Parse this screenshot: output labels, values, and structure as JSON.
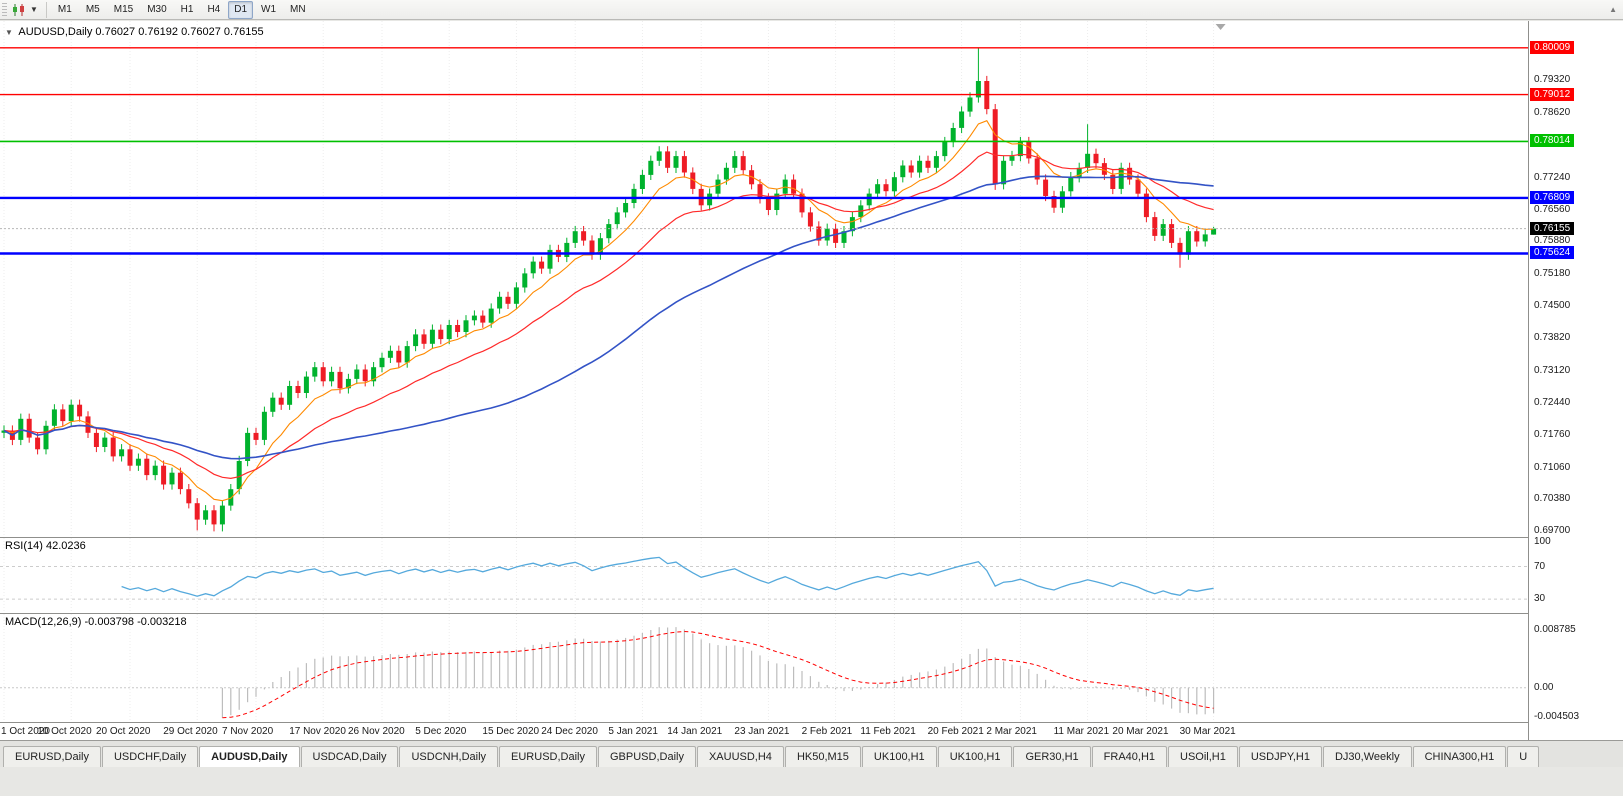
{
  "toolbar": {
    "timeframes": [
      "M1",
      "M5",
      "M15",
      "M30",
      "H1",
      "H4",
      "D1",
      "W1",
      "MN"
    ],
    "active_timeframe": "D1"
  },
  "chart_header": {
    "symbol": "AUDUSD,Daily",
    "open": "0.76027",
    "high": "0.76192",
    "low": "0.76027",
    "close": "0.76155"
  },
  "price_axis": {
    "ticks": [
      {
        "label": "0.79320",
        "value": 0.7932
      },
      {
        "label": "0.78620",
        "value": 0.7862
      },
      {
        "label": "0.77240",
        "value": 0.7724
      },
      {
        "label": "0.76560",
        "value": 0.7656
      },
      {
        "label": "0.75880",
        "value": 0.7588
      },
      {
        "label": "0.75180",
        "value": 0.7518
      },
      {
        "label": "0.74500",
        "value": 0.745
      },
      {
        "label": "0.73820",
        "value": 0.7382
      },
      {
        "label": "0.73120",
        "value": 0.7312
      },
      {
        "label": "0.72440",
        "value": 0.7244
      },
      {
        "label": "0.71760",
        "value": 0.7176
      },
      {
        "label": "0.71060",
        "value": 0.7106
      },
      {
        "label": "0.70380",
        "value": 0.7038
      },
      {
        "label": "0.69700",
        "value": 0.697
      }
    ]
  },
  "hlines": [
    {
      "label": "0.80009",
      "value": 0.80009,
      "color": "#ff0000",
      "width": 1.4
    },
    {
      "label": "0.79012",
      "value": 0.79012,
      "color": "#ff0000",
      "width": 1.4
    },
    {
      "label": "0.78014",
      "value": 0.78014,
      "color": "#00c000",
      "width": 1.6
    },
    {
      "label": "0.76809",
      "value": 0.76809,
      "color": "#0000ff",
      "width": 2.4
    },
    {
      "label": "0.75624",
      "value": 0.75624,
      "color": "#0000ff",
      "width": 2.4
    }
  ],
  "current_price": {
    "label": "0.76155",
    "value": 0.76155,
    "color": "#000000"
  },
  "indicators": {
    "rsi": {
      "name": "RSI(14)",
      "value": "42.0236",
      "period": 14,
      "color": "#55a9dc",
      "axis": [
        {
          "label": "100",
          "value": 100
        },
        {
          "label": "70",
          "value": 70
        },
        {
          "label": "30",
          "value": 30
        }
      ],
      "level_lines": [
        70,
        30
      ]
    },
    "macd": {
      "name": "MACD(12,26,9)",
      "main_value": "-0.003798",
      "signal_value": "-0.003218",
      "fast": 12,
      "slow": 26,
      "signal": 9,
      "hist_color": "#bdbdbd",
      "signal_color": "#ff0000",
      "axis": [
        {
          "label": "0.008785",
          "value": 0.008785
        },
        {
          "label": "0.00",
          "value": 0
        },
        {
          "label": "-0.004503",
          "value": -0.004503
        }
      ]
    }
  },
  "ma_overlays": [
    {
      "name": "fast-ma",
      "type": "ema",
      "period": 8,
      "color": "#ff8a00",
      "width": 1.1
    },
    {
      "name": "mid-ma",
      "type": "ema",
      "period": 20,
      "color": "#ff2a2a",
      "width": 1.2
    },
    {
      "name": "slow-ma",
      "type": "sma",
      "period": 50,
      "color": "#3353c6",
      "width": 1.6
    }
  ],
  "chart_data": {
    "type": "candlestick",
    "symbol": "AUDUSD",
    "timeframe": "Daily",
    "up_color": "#00b22d",
    "down_color": "#ee1c25",
    "y_range": [
      0.6958,
      0.8058
    ],
    "x_labels": [
      "1 Oct 2020",
      "10 Oct 2020",
      "20 Oct 2020",
      "29 Oct 2020",
      "7 Nov 2020",
      "17 Nov 2020",
      "26 Nov 2020",
      "5 Dec 2020",
      "15 Dec 2020",
      "24 Dec 2020",
      "5 Jan 2021",
      "14 Jan 2021",
      "23 Jan 2021",
      "2 Feb 2021",
      "11 Feb 2021",
      "20 Feb 2021",
      "2 Mar 2021",
      "11 Mar 2021",
      "20 Mar 2021",
      "30 Mar 2021"
    ],
    "candles": [
      [
        0.718,
        0.7196,
        0.7169,
        0.7185
      ],
      [
        0.7185,
        0.7196,
        0.7154,
        0.7165
      ],
      [
        0.7165,
        0.7221,
        0.7154,
        0.721
      ],
      [
        0.721,
        0.7221,
        0.7159,
        0.717
      ],
      [
        0.717,
        0.7181,
        0.7134,
        0.7145
      ],
      [
        0.7145,
        0.7206,
        0.7134,
        0.7195
      ],
      [
        0.7195,
        0.7241,
        0.7184,
        0.723
      ],
      [
        0.723,
        0.7241,
        0.7194,
        0.7205
      ],
      [
        0.7205,
        0.7251,
        0.7194,
        0.724
      ],
      [
        0.724,
        0.7251,
        0.7204,
        0.7215
      ],
      [
        0.7215,
        0.7226,
        0.7169,
        0.718
      ],
      [
        0.718,
        0.7191,
        0.7139,
        0.715
      ],
      [
        0.715,
        0.7181,
        0.7139,
        0.717
      ],
      [
        0.717,
        0.7181,
        0.7119,
        0.713
      ],
      [
        0.713,
        0.7156,
        0.7119,
        0.7145
      ],
      [
        0.7145,
        0.7156,
        0.7099,
        0.711
      ],
      [
        0.711,
        0.7136,
        0.7099,
        0.7125
      ],
      [
        0.7125,
        0.7136,
        0.7079,
        0.709
      ],
      [
        0.709,
        0.7121,
        0.7079,
        0.711
      ],
      [
        0.711,
        0.7121,
        0.7059,
        0.707
      ],
      [
        0.707,
        0.7106,
        0.7059,
        0.7095
      ],
      [
        0.7095,
        0.7106,
        0.7049,
        0.706
      ],
      [
        0.706,
        0.7071,
        0.7019,
        0.703
      ],
      [
        0.703,
        0.7041,
        0.6972,
        0.6995
      ],
      [
        0.6995,
        0.7026,
        0.6984,
        0.7015
      ],
      [
        0.7015,
        0.7026,
        0.697,
        0.6985
      ],
      [
        0.6985,
        0.7036,
        0.697,
        0.7025
      ],
      [
        0.7025,
        0.7071,
        0.7014,
        0.706
      ],
      [
        0.706,
        0.7131,
        0.7049,
        0.712
      ],
      [
        0.712,
        0.7191,
        0.7109,
        0.718
      ],
      [
        0.718,
        0.7191,
        0.7154,
        0.7165
      ],
      [
        0.7165,
        0.7236,
        0.7154,
        0.7225
      ],
      [
        0.7225,
        0.7266,
        0.7214,
        0.7255
      ],
      [
        0.7255,
        0.7266,
        0.7229,
        0.724
      ],
      [
        0.724,
        0.7291,
        0.7229,
        0.728
      ],
      [
        0.728,
        0.7291,
        0.7254,
        0.7265
      ],
      [
        0.7265,
        0.7311,
        0.7254,
        0.73
      ],
      [
        0.73,
        0.7331,
        0.7289,
        0.732
      ],
      [
        0.732,
        0.7331,
        0.7279,
        0.729
      ],
      [
        0.729,
        0.7321,
        0.7279,
        0.731
      ],
      [
        0.731,
        0.7321,
        0.7264,
        0.7275
      ],
      [
        0.7275,
        0.7306,
        0.7264,
        0.7295
      ],
      [
        0.7295,
        0.7326,
        0.7284,
        0.7315
      ],
      [
        0.7315,
        0.7326,
        0.7279,
        0.729
      ],
      [
        0.729,
        0.7331,
        0.7279,
        0.732
      ],
      [
        0.732,
        0.7351,
        0.7309,
        0.734
      ],
      [
        0.734,
        0.7366,
        0.7329,
        0.7355
      ],
      [
        0.7355,
        0.7366,
        0.7319,
        0.733
      ],
      [
        0.733,
        0.7376,
        0.7319,
        0.7365
      ],
      [
        0.7365,
        0.7401,
        0.7354,
        0.739
      ],
      [
        0.739,
        0.7401,
        0.7359,
        0.737
      ],
      [
        0.737,
        0.7411,
        0.7359,
        0.74
      ],
      [
        0.74,
        0.7411,
        0.7369,
        0.738
      ],
      [
        0.738,
        0.7421,
        0.7369,
        0.741
      ],
      [
        0.741,
        0.7421,
        0.7384,
        0.7395
      ],
      [
        0.7395,
        0.7431,
        0.7384,
        0.742
      ],
      [
        0.742,
        0.7441,
        0.7409,
        0.743
      ],
      [
        0.743,
        0.7441,
        0.7404,
        0.7415
      ],
      [
        0.7415,
        0.7456,
        0.7404,
        0.7445
      ],
      [
        0.7445,
        0.7481,
        0.7434,
        0.747
      ],
      [
        0.747,
        0.7481,
        0.7444,
        0.7455
      ],
      [
        0.7455,
        0.7501,
        0.7444,
        0.749
      ],
      [
        0.749,
        0.7531,
        0.7479,
        0.752
      ],
      [
        0.752,
        0.7556,
        0.7509,
        0.7545
      ],
      [
        0.7545,
        0.7556,
        0.7519,
        0.753
      ],
      [
        0.753,
        0.7581,
        0.7519,
        0.757
      ],
      [
        0.757,
        0.7581,
        0.7544,
        0.7555
      ],
      [
        0.7555,
        0.7596,
        0.7544,
        0.7585
      ],
      [
        0.7585,
        0.7621,
        0.7574,
        0.761
      ],
      [
        0.761,
        0.7621,
        0.7579,
        0.759
      ],
      [
        0.759,
        0.7601,
        0.7549,
        0.756
      ],
      [
        0.756,
        0.7606,
        0.7549,
        0.7595
      ],
      [
        0.7595,
        0.7636,
        0.7584,
        0.7625
      ],
      [
        0.7625,
        0.7661,
        0.7614,
        0.765
      ],
      [
        0.765,
        0.7681,
        0.7639,
        0.767
      ],
      [
        0.767,
        0.7711,
        0.7659,
        0.77
      ],
      [
        0.77,
        0.7741,
        0.7689,
        0.773
      ],
      [
        0.773,
        0.7771,
        0.7719,
        0.776
      ],
      [
        0.776,
        0.7791,
        0.7749,
        0.778
      ],
      [
        0.778,
        0.7791,
        0.7734,
        0.7745
      ],
      [
        0.7745,
        0.7781,
        0.7734,
        0.777
      ],
      [
        0.777,
        0.7781,
        0.7724,
        0.7735
      ],
      [
        0.7735,
        0.7746,
        0.7689,
        0.77
      ],
      [
        0.77,
        0.7711,
        0.7654,
        0.7665
      ],
      [
        0.7665,
        0.7701,
        0.7654,
        0.769
      ],
      [
        0.769,
        0.7731,
        0.7679,
        0.772
      ],
      [
        0.772,
        0.7756,
        0.7709,
        0.7745
      ],
      [
        0.7745,
        0.7781,
        0.7734,
        0.777
      ],
      [
        0.777,
        0.7781,
        0.7729,
        0.774
      ],
      [
        0.774,
        0.7751,
        0.7699,
        0.771
      ],
      [
        0.771,
        0.7721,
        0.7669,
        0.768
      ],
      [
        0.768,
        0.7691,
        0.7644,
        0.7655
      ],
      [
        0.7655,
        0.7701,
        0.7644,
        0.769
      ],
      [
        0.769,
        0.7731,
        0.7679,
        0.772
      ],
      [
        0.772,
        0.7731,
        0.7679,
        0.769
      ],
      [
        0.769,
        0.7701,
        0.7639,
        0.765
      ],
      [
        0.765,
        0.7661,
        0.7609,
        0.762
      ],
      [
        0.762,
        0.7631,
        0.7579,
        0.759
      ],
      [
        0.759,
        0.7626,
        0.7579,
        0.7615
      ],
      [
        0.7615,
        0.7626,
        0.7574,
        0.7585
      ],
      [
        0.7585,
        0.7621,
        0.7574,
        0.761
      ],
      [
        0.761,
        0.7651,
        0.7599,
        0.764
      ],
      [
        0.764,
        0.7676,
        0.7629,
        0.7665
      ],
      [
        0.7665,
        0.7701,
        0.7654,
        0.769
      ],
      [
        0.769,
        0.7721,
        0.7679,
        0.771
      ],
      [
        0.771,
        0.7721,
        0.7684,
        0.7695
      ],
      [
        0.7695,
        0.7736,
        0.7684,
        0.7725
      ],
      [
        0.7725,
        0.7761,
        0.7714,
        0.775
      ],
      [
        0.775,
        0.7761,
        0.7724,
        0.7735
      ],
      [
        0.7735,
        0.7771,
        0.7724,
        0.776
      ],
      [
        0.776,
        0.7771,
        0.7734,
        0.7745
      ],
      [
        0.7745,
        0.7781,
        0.7734,
        0.777
      ],
      [
        0.777,
        0.7811,
        0.7759,
        0.78
      ],
      [
        0.78,
        0.7841,
        0.7789,
        0.783
      ],
      [
        0.783,
        0.7876,
        0.7819,
        0.7865
      ],
      [
        0.7865,
        0.7906,
        0.7854,
        0.7895
      ],
      [
        0.7895,
        0.8001,
        0.7884,
        0.793
      ],
      [
        0.793,
        0.7941,
        0.7859,
        0.787
      ],
      [
        0.787,
        0.7881,
        0.7698,
        0.771
      ],
      [
        0.771,
        0.7771,
        0.7699,
        0.776
      ],
      [
        0.776,
        0.7781,
        0.7749,
        0.777
      ],
      [
        0.777,
        0.7811,
        0.7759,
        0.78
      ],
      [
        0.78,
        0.7811,
        0.7754,
        0.7765
      ],
      [
        0.7765,
        0.7776,
        0.7709,
        0.772
      ],
      [
        0.772,
        0.7731,
        0.7674,
        0.7685
      ],
      [
        0.7685,
        0.7696,
        0.7649,
        0.766
      ],
      [
        0.766,
        0.7706,
        0.7649,
        0.7695
      ],
      [
        0.7695,
        0.7736,
        0.7684,
        0.7725
      ],
      [
        0.7725,
        0.7756,
        0.7714,
        0.7745
      ],
      [
        0.7745,
        0.7838,
        0.7734,
        0.7775
      ],
      [
        0.7775,
        0.7786,
        0.7744,
        0.7755
      ],
      [
        0.7755,
        0.7766,
        0.7719,
        0.773
      ],
      [
        0.773,
        0.7741,
        0.7689,
        0.77
      ],
      [
        0.77,
        0.7756,
        0.7689,
        0.7745
      ],
      [
        0.7745,
        0.7756,
        0.7709,
        0.772
      ],
      [
        0.772,
        0.7731,
        0.7679,
        0.769
      ],
      [
        0.769,
        0.7701,
        0.7629,
        0.764
      ],
      [
        0.764,
        0.7651,
        0.7589,
        0.76
      ],
      [
        0.76,
        0.7636,
        0.7589,
        0.7625
      ],
      [
        0.7625,
        0.7636,
        0.7574,
        0.7585
      ],
      [
        0.7585,
        0.7596,
        0.7532,
        0.756
      ],
      [
        0.756,
        0.7621,
        0.7549,
        0.761
      ],
      [
        0.761,
        0.7621,
        0.7577,
        0.7588
      ],
      [
        0.7588,
        0.7614,
        0.7577,
        0.7603
      ],
      [
        0.76027,
        0.76192,
        0.76027,
        0.76155
      ]
    ]
  },
  "tabs": [
    {
      "label": "EURUSD,Daily",
      "active": false
    },
    {
      "label": "USDCHF,Daily",
      "active": false
    },
    {
      "label": "AUDUSD,Daily",
      "active": true
    },
    {
      "label": "USDCAD,Daily",
      "active": false
    },
    {
      "label": "USDCNH,Daily",
      "active": false
    },
    {
      "label": "EURUSD,Daily",
      "active": false
    },
    {
      "label": "GBPUSD,Daily",
      "active": false
    },
    {
      "label": "XAUUSD,H4",
      "active": false
    },
    {
      "label": "HK50,M15",
      "active": false
    },
    {
      "label": "UK100,H1",
      "active": false
    },
    {
      "label": "UK100,H1",
      "active": false
    },
    {
      "label": "GER30,H1",
      "active": false
    },
    {
      "label": "FRA40,H1",
      "active": false
    },
    {
      "label": "USOil,H1",
      "active": false
    },
    {
      "label": "USDJPY,H1",
      "active": false
    },
    {
      "label": "DJ30,Weekly",
      "active": false
    },
    {
      "label": "CHINA300,H1",
      "active": false
    },
    {
      "label": "U",
      "active": false
    }
  ]
}
